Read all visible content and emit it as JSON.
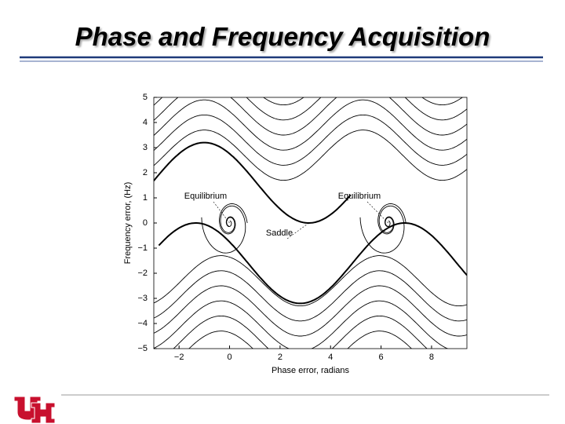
{
  "title": "Phase and Frequency Acquisition",
  "chart_data": {
    "type": "phase-portrait",
    "xlabel": "Phase error, radians",
    "ylabel": "Frequency error, (Hz)",
    "xlim": [
      -3,
      9.4
    ],
    "ylim": [
      -5,
      5
    ],
    "xticks": [
      {
        "value": -2,
        "label": "−2"
      },
      0,
      2,
      4,
      6,
      8
    ],
    "yticks": [
      {
        "value": -5,
        "label": "−5"
      },
      {
        "value": -4,
        "label": "−4"
      },
      {
        "value": -3,
        "label": "−3"
      },
      {
        "value": -2,
        "label": "−2"
      },
      {
        "value": -1,
        "label": "−1"
      },
      0,
      1,
      2,
      3,
      4,
      5
    ],
    "annotations": [
      "Equilibrium",
      "Equilibrium",
      "Saddle"
    ]
  }
}
